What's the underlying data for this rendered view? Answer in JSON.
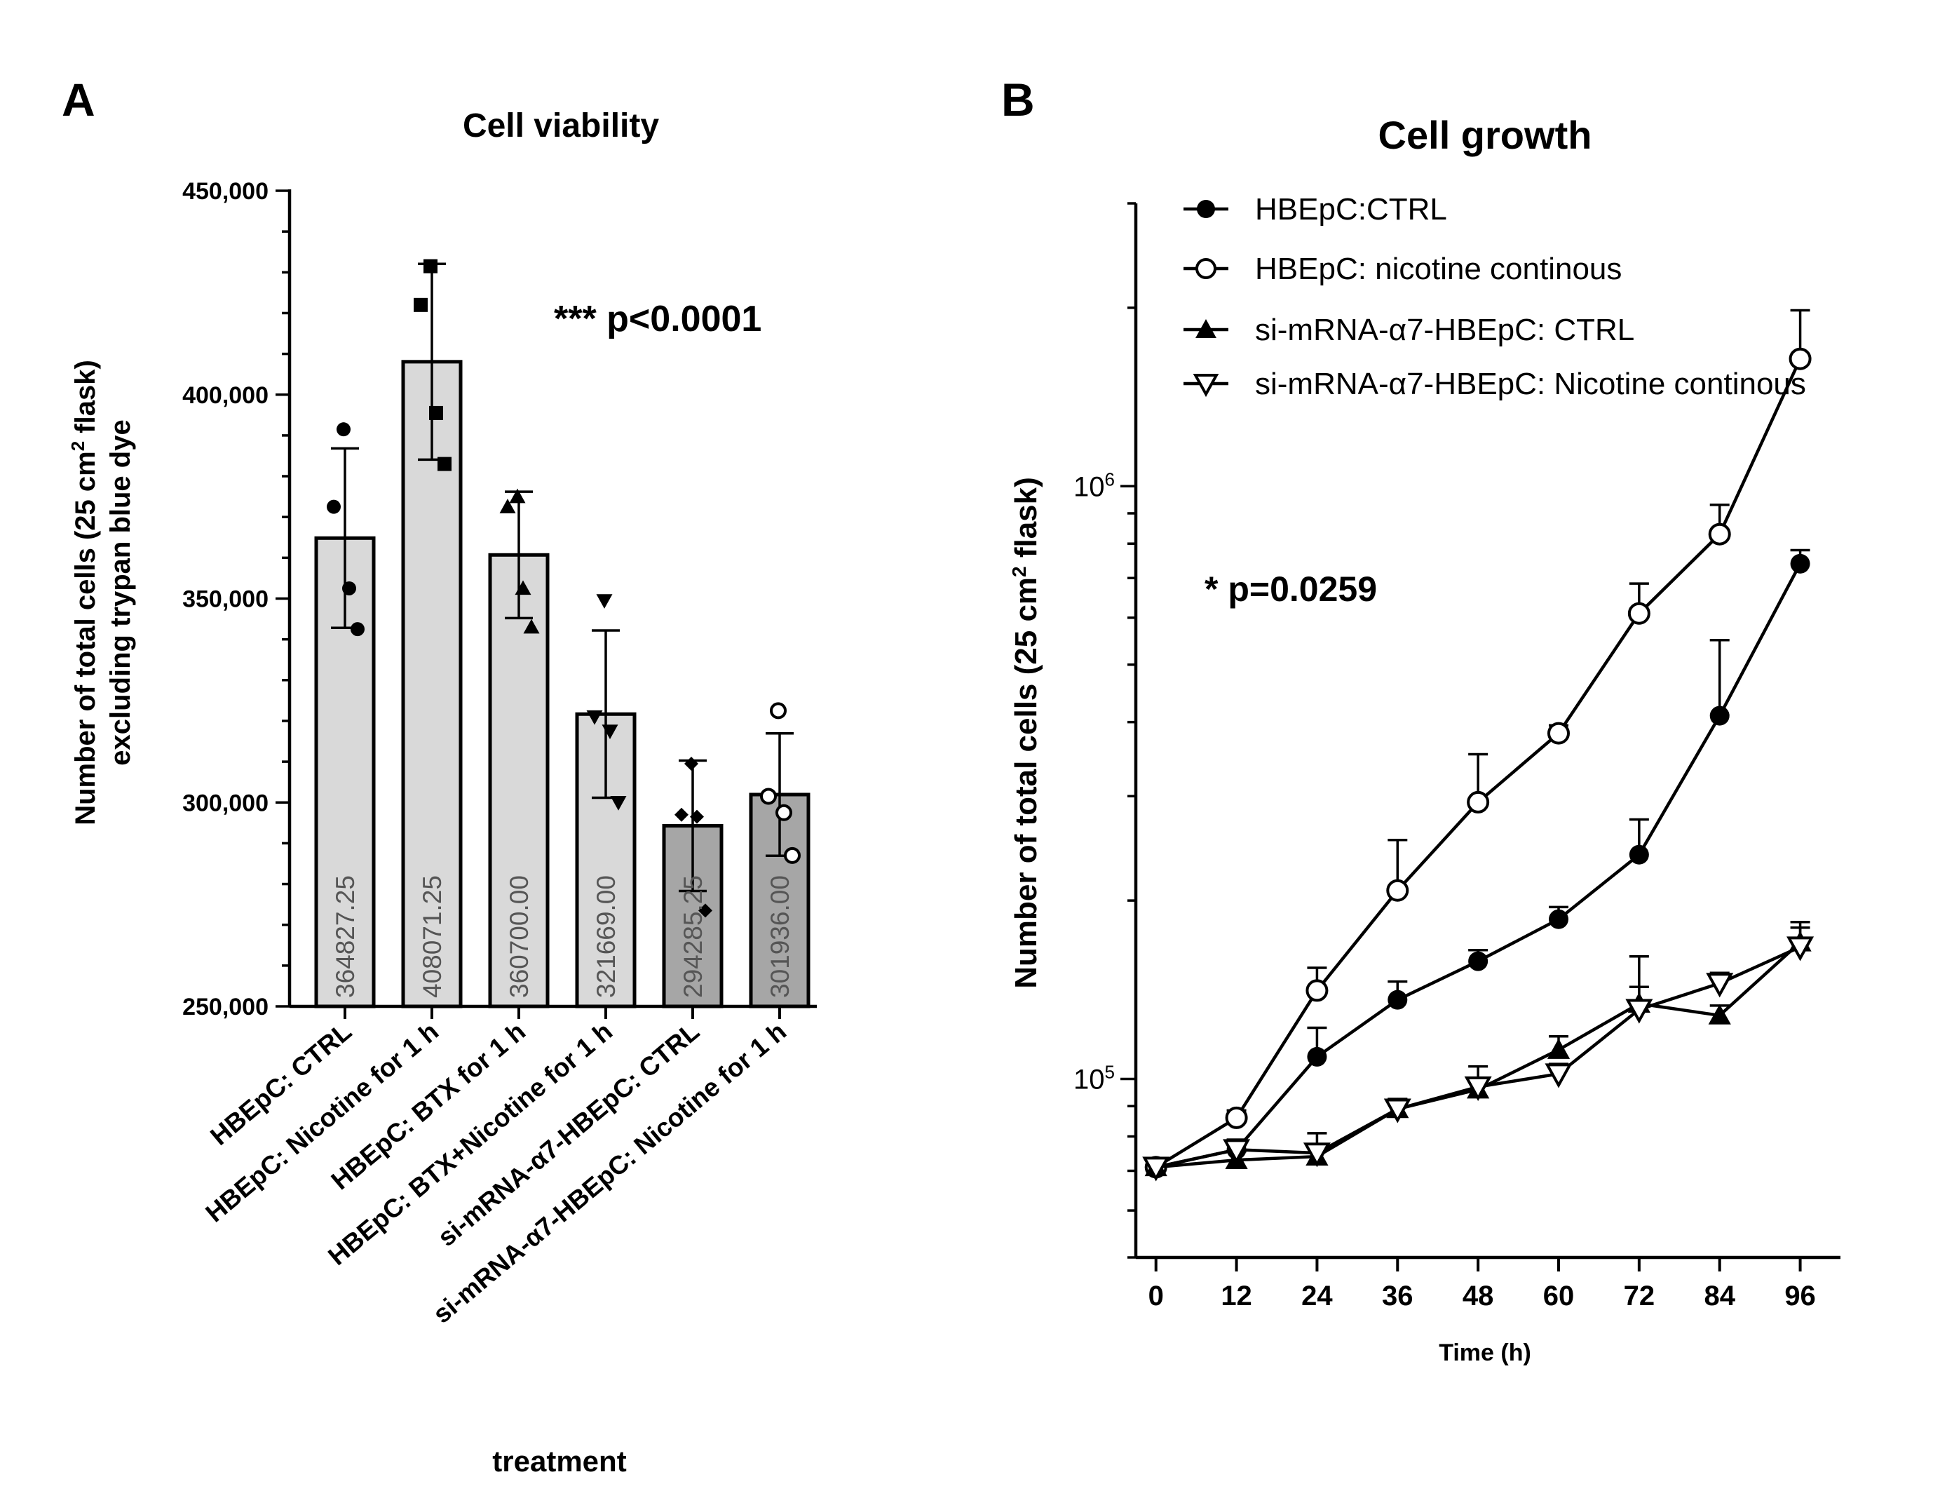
{
  "chart_data": [
    {
      "panel_label": "A",
      "type": "bar",
      "title": "Cell viability",
      "ylabel_line1_prefix": "Number of total cells (25 cm",
      "ylabel_line1_sup": "2",
      "ylabel_line1_suffix": " flask)",
      "ylabel_line2": "excluding trypan blue dye",
      "xlabel": "treatment",
      "ylim": [
        250000,
        450000
      ],
      "yticks": [
        250000,
        300000,
        350000,
        400000,
        450000
      ],
      "ytick_labels": [
        "250,000",
        "300,000",
        "350,000",
        "400,000",
        "450,000"
      ],
      "annotation": "*** p<0.0001",
      "categories": [
        "HBEpC: CTRL",
        "HBEpC: Nicotine for 1 h",
        "HBEpC: BTX for 1 h",
        "HBEpC: BTX+Nicotine for 1 h",
        "si-mRNA-α7-HBEpC: CTRL",
        "si-mRNA-α7-HBEpC: Nicotine for 1 h"
      ],
      "values": [
        364827.25,
        408071.25,
        360700.0,
        321669.0,
        294285.25,
        301936.0
      ],
      "value_labels": [
        "364827.25",
        "408071.25",
        "360700.00",
        "321669.00",
        "294285.25",
        "301936.00"
      ],
      "sd": [
        22000,
        24000,
        15500,
        20500,
        16000,
        15000
      ],
      "bar_colors": [
        "#d9d9d9",
        "#d9d9d9",
        "#d9d9d9",
        "#d9d9d9",
        "#a6a6a6",
        "#a6a6a6"
      ],
      "marker_shapes": [
        "circle",
        "square",
        "triangle-up",
        "triangle-down",
        "diamond",
        "circle-open"
      ],
      "points": [
        [
          391500,
          372500,
          352500,
          342500
        ],
        [
          431500,
          422000,
          395500,
          383000
        ],
        [
          375000,
          372500,
          352500,
          343000
        ],
        [
          349500,
          321000,
          317500,
          300000
        ],
        [
          309500,
          297000,
          296500,
          273500
        ],
        [
          322500,
          301500,
          297500,
          287000
        ]
      ]
    },
    {
      "panel_label": "B",
      "type": "line",
      "title": "Cell growth",
      "ylabel_prefix": "Number of total cells (25 cm",
      "ylabel_sup": "2",
      "ylabel_suffix": " flask)",
      "xlabel": "Time (h)",
      "yscale": "log",
      "ylim": [
        50000,
        3000000
      ],
      "ytick_labels": [
        {
          "value": 100000,
          "base": "10",
          "exp": "5"
        },
        {
          "value": 1000000,
          "base": "10",
          "exp": "6"
        }
      ],
      "x": [
        0,
        12,
        24,
        36,
        48,
        60,
        72,
        84,
        96
      ],
      "xlim": [
        -3,
        102
      ],
      "annotation": "* p=0.0259",
      "series": [
        {
          "name": "HBEpC:CTRL",
          "marker": "circle-filled",
          "values": [
            71000,
            76000,
            109000,
            136000,
            158000,
            186000,
            239000,
            410000,
            740000
          ],
          "err": [
            1500,
            3000,
            13000,
            10000,
            7000,
            9000,
            35000,
            140000,
            40000
          ]
        },
        {
          "name": "HBEpC: nicotine continous",
          "marker": "circle-open",
          "values": [
            71000,
            86000,
            141000,
            208000,
            293000,
            383000,
            610000,
            830000,
            1640000
          ],
          "err": [
            1500,
            2500,
            13000,
            45000,
            60000,
            12000,
            75000,
            100000,
            340000
          ]
        },
        {
          "name": "si-mRNA-α7-HBEpC: CTRL",
          "marker": "triangle-filled",
          "values": [
            71000,
            73000,
            74000,
            89000,
            96000,
            112000,
            134000,
            128000,
            170000
          ],
          "err": [
            1500,
            2500,
            2500,
            3500,
            4000,
            6000,
            27000,
            5000,
            10000
          ]
        },
        {
          "name": "si-mRNA-α7-HBEpC: Nicotine continous",
          "marker": "triangle-down-open",
          "values": [
            71000,
            76000,
            75000,
            89000,
            97000,
            102000,
            131000,
            145000,
            167000
          ],
          "err": [
            1500,
            3000,
            6000,
            3500,
            8000,
            4000,
            12000,
            6000,
            17000
          ]
        }
      ]
    }
  ]
}
